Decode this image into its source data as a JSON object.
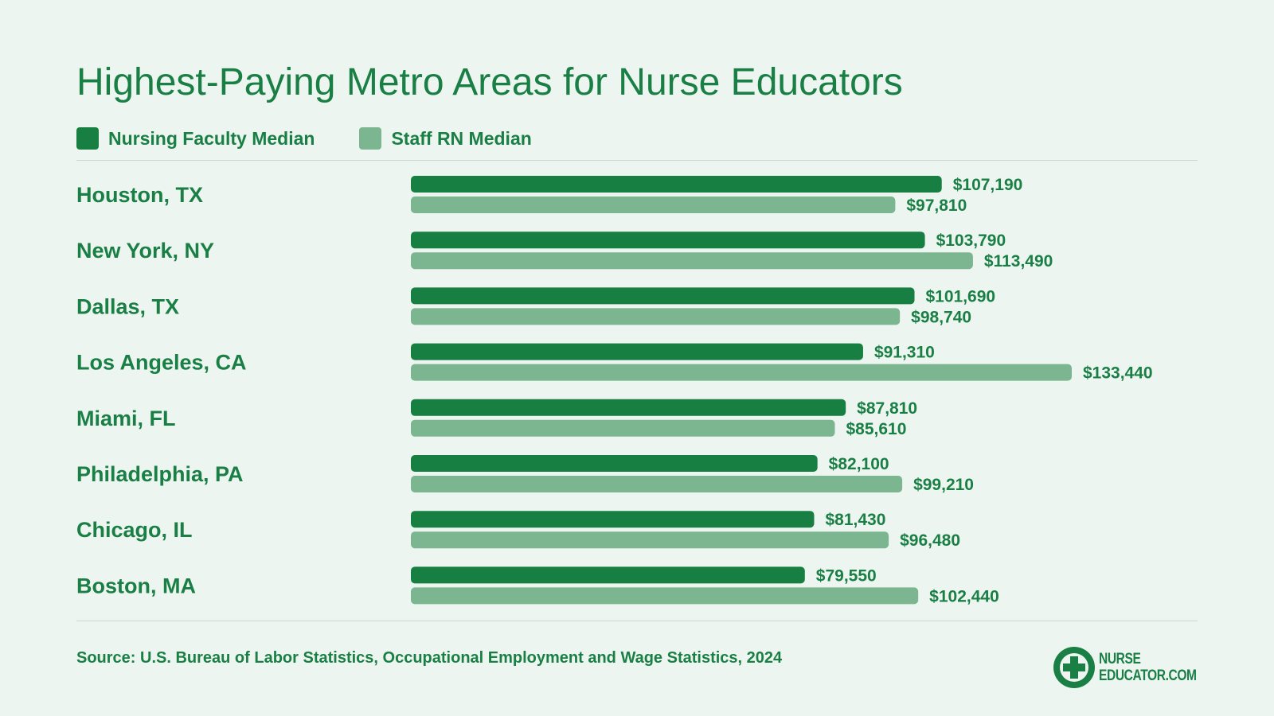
{
  "colors": {
    "faculty": "#177f42",
    "staff": "#7bb690",
    "text": "#1a7f45",
    "background": "#edf5f0"
  },
  "footer": {
    "source": "Source: U.S. Bureau of Labor Statistics, Occupational Employment and Wage Statistics, 2024"
  },
  "logo": {
    "line1": "NURSE",
    "line2": "EDUCATOR.COM",
    "icon": "medical-cross-icon"
  },
  "chart_data": {
    "type": "bar",
    "orientation": "horizontal",
    "title": "Highest-Paying Metro Areas for Nurse Educators",
    "legend_position": "top-left",
    "grid": false,
    "xlim": [
      0,
      140000
    ],
    "categories": [
      "Houston, TX",
      "New York, NY",
      "Dallas, TX",
      "Los Angeles, CA",
      "Miami, FL",
      "Philadelphia, PA",
      "Chicago, IL",
      "Boston, MA"
    ],
    "series": [
      {
        "name": "Nursing Faculty Median",
        "values": [
          107190,
          103790,
          101690,
          91310,
          87810,
          82100,
          81430,
          79550
        ],
        "labels": [
          "$107,190",
          "$103,790",
          "$101,690",
          "$91,310",
          "$87,810",
          "$82,100",
          "$81,430",
          "$79,550"
        ]
      },
      {
        "name": "Staff RN Median",
        "values": [
          97810,
          113490,
          98740,
          133440,
          85610,
          99210,
          96480,
          102440
        ],
        "labels": [
          "$97,810",
          "$113,490",
          "$98,740",
          "$133,440",
          "$85,610",
          "$99,210",
          "$96,480",
          "$102,440"
        ]
      }
    ]
  }
}
